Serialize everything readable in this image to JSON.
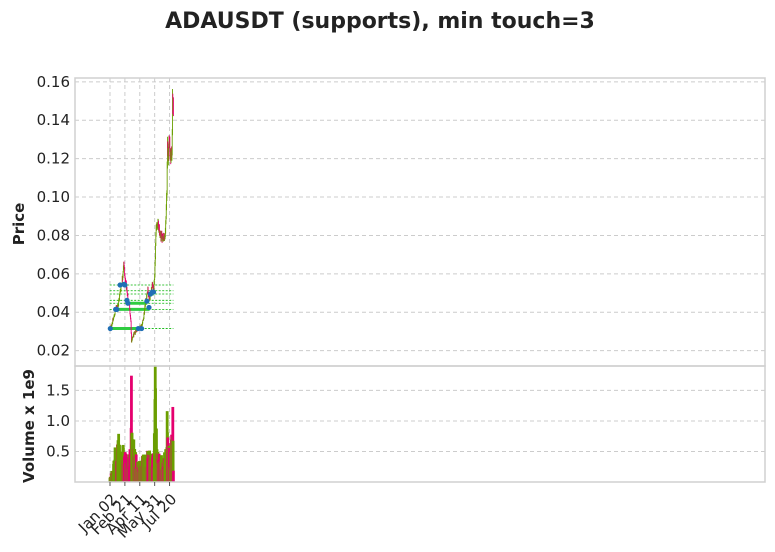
{
  "chart_data": {
    "type": "candlestick",
    "title": "ADAUSDT (supports), min touch=3",
    "colors": {
      "up": "#6b9e00",
      "down": "#e5006e",
      "support": "#2ecc40",
      "guide": "#00b300",
      "touch": "#1f6fb5"
    },
    "price_panel": {
      "ylabel": "Price",
      "ylim": [
        0.012,
        0.162
      ],
      "yticks": [
        0.02,
        0.04,
        0.06,
        0.08,
        0.1,
        0.12,
        0.14,
        0.16
      ],
      "ytick_labels": [
        "0.02",
        "0.04",
        "0.06",
        "0.08",
        "0.10",
        "0.12",
        "0.14",
        "0.16"
      ]
    },
    "volume_panel": {
      "ylabel": "Volume x 1e9",
      "ylim": [
        0,
        1.9
      ],
      "yticks": [
        0.5,
        1.0,
        1.5
      ],
      "ytick_labels": [
        "0.5",
        "1.0",
        "1.5"
      ]
    },
    "x_ticks": [
      {
        "index": 0,
        "label": "Jan 02"
      },
      {
        "index": 50,
        "label": "Feb 21"
      },
      {
        "index": 100,
        "label": "Apr 11"
      },
      {
        "index": 150,
        "label": "May 31"
      },
      {
        "index": 200,
        "label": "Jul 20"
      }
    ],
    "n_candles": 210,
    "price_anchors": [
      [
        0,
        0.031
      ],
      [
        6,
        0.034
      ],
      [
        12,
        0.037
      ],
      [
        20,
        0.042
      ],
      [
        28,
        0.044
      ],
      [
        35,
        0.052
      ],
      [
        42,
        0.058
      ],
      [
        46,
        0.066
      ],
      [
        50,
        0.058
      ],
      [
        55,
        0.053
      ],
      [
        60,
        0.046
      ],
      [
        65,
        0.044
      ],
      [
        70,
        0.035
      ],
      [
        72,
        0.024
      ],
      [
        76,
        0.027
      ],
      [
        82,
        0.029
      ],
      [
        90,
        0.031
      ],
      [
        100,
        0.032
      ],
      [
        108,
        0.033
      ],
      [
        115,
        0.04
      ],
      [
        122,
        0.048
      ],
      [
        127,
        0.052
      ],
      [
        132,
        0.046
      ],
      [
        137,
        0.05
      ],
      [
        142,
        0.055
      ],
      [
        147,
        0.052
      ],
      [
        150,
        0.058
      ],
      [
        153,
        0.075
      ],
      [
        156,
        0.086
      ],
      [
        160,
        0.087
      ],
      [
        165,
        0.082
      ],
      [
        170,
        0.08
      ],
      [
        175,
        0.079
      ],
      [
        180,
        0.08
      ],
      [
        184,
        0.078
      ],
      [
        188,
        0.09
      ],
      [
        191,
        0.105
      ],
      [
        193,
        0.127
      ],
      [
        196,
        0.122
      ],
      [
        198,
        0.13
      ],
      [
        202,
        0.122
      ],
      [
        205,
        0.12
      ],
      [
        208,
        0.125
      ],
      [
        210,
        0.15
      ],
      [
        213,
        0.145
      ]
    ],
    "volume_anchors": [
      [
        0,
        0.05
      ],
      [
        10,
        0.2
      ],
      [
        15,
        0.5
      ],
      [
        22,
        0.3
      ],
      [
        28,
        0.6
      ],
      [
        35,
        0.35
      ],
      [
        45,
        0.45
      ],
      [
        52,
        0.35
      ],
      [
        60,
        0.3
      ],
      [
        70,
        0.45
      ],
      [
        72,
        1.25
      ],
      [
        76,
        0.4
      ],
      [
        80,
        0.55
      ],
      [
        90,
        0.3
      ],
      [
        100,
        0.25
      ],
      [
        105,
        0.25
      ],
      [
        115,
        0.4
      ],
      [
        125,
        0.35
      ],
      [
        130,
        0.45
      ],
      [
        140,
        0.3
      ],
      [
        148,
        0.4
      ],
      [
        150,
        0.9
      ],
      [
        152,
        1.4
      ],
      [
        155,
        0.7
      ],
      [
        162,
        0.4
      ],
      [
        170,
        0.35
      ],
      [
        180,
        0.3
      ],
      [
        190,
        0.5
      ],
      [
        193,
        1.3
      ],
      [
        196,
        0.6
      ],
      [
        203,
        0.25
      ],
      [
        208,
        0.8
      ],
      [
        211,
        0.9
      ],
      [
        213,
        0.3
      ]
    ],
    "support_lines": [
      {
        "price": 0.0315,
        "start": 0,
        "end": 108
      },
      {
        "price": 0.0415,
        "start": 18,
        "end": 133
      },
      {
        "price": 0.0447,
        "start": 55,
        "end": 125
      },
      {
        "price": 0.0462,
        "start": 56,
        "end": 60
      },
      {
        "price": 0.0495,
        "start": 135,
        "end": 147
      },
      {
        "price": 0.0542,
        "start": 33,
        "end": 51
      }
    ],
    "guide_levels": [
      0.0315,
      0.0415,
      0.0447,
      0.0462,
      0.0495,
      0.0512,
      0.0542
    ],
    "touch_points": [
      {
        "index": 1,
        "price": 0.0315
      },
      {
        "index": 95,
        "price": 0.0315
      },
      {
        "index": 106,
        "price": 0.0315
      },
      {
        "index": 19,
        "price": 0.0415
      },
      {
        "index": 23,
        "price": 0.0415
      },
      {
        "index": 131,
        "price": 0.0425
      },
      {
        "index": 57,
        "price": 0.0462
      },
      {
        "index": 60,
        "price": 0.0447
      },
      {
        "index": 124,
        "price": 0.0458
      },
      {
        "index": 34,
        "price": 0.0542
      },
      {
        "index": 47,
        "price": 0.0545
      },
      {
        "index": 50,
        "price": 0.0542
      },
      {
        "index": 136,
        "price": 0.0495
      },
      {
        "index": 142,
        "price": 0.0505
      },
      {
        "index": 146,
        "price": 0.0505
      }
    ]
  }
}
